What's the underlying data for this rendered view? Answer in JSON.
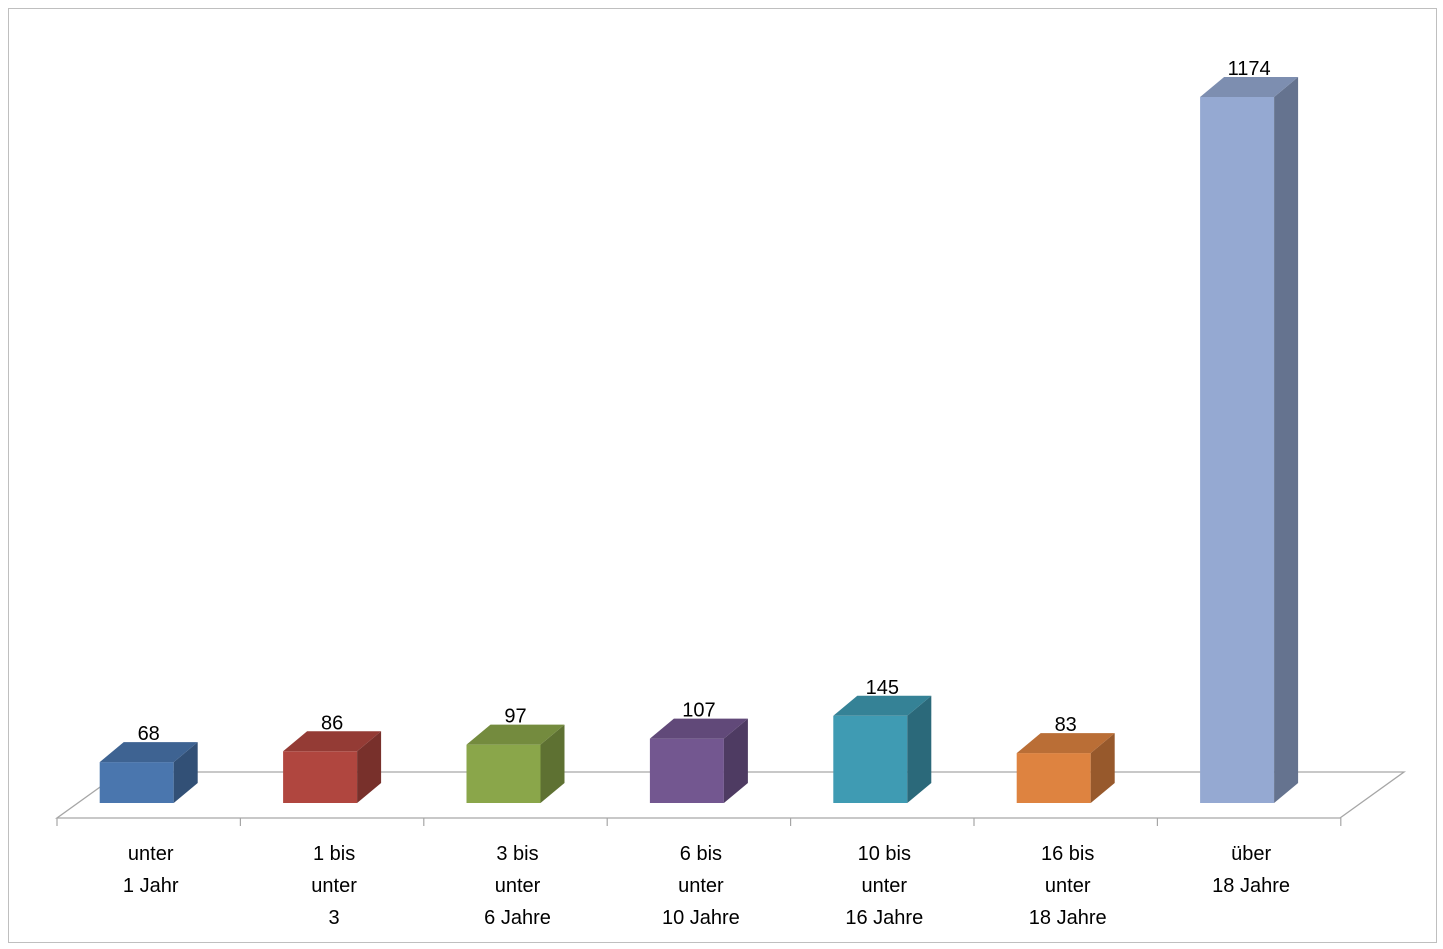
{
  "chart_data": {
    "type": "bar",
    "categories": [
      [
        "unter",
        "1 Jahr"
      ],
      [
        "1 bis",
        "unter",
        "3"
      ],
      [
        "3 bis",
        "unter",
        "6 Jahre"
      ],
      [
        "6 bis",
        "unter",
        "10 Jahre"
      ],
      [
        "10 bis",
        "unter",
        "16 Jahre"
      ],
      [
        "16 bis",
        "unter",
        "18 Jahre"
      ],
      [
        "über",
        "18 Jahre"
      ]
    ],
    "values": [
      68,
      86,
      97,
      107,
      145,
      83,
      1174
    ],
    "data_labels": [
      "68",
      "86",
      "97",
      "107",
      "145",
      "83",
      "1174"
    ],
    "colors": [
      "#4a76ae",
      "#b0463f",
      "#8aa64a",
      "#735790",
      "#3f9bb3",
      "#de8340",
      "#95a9d2"
    ],
    "style": "3d-column",
    "grid": false,
    "legend": "none"
  }
}
